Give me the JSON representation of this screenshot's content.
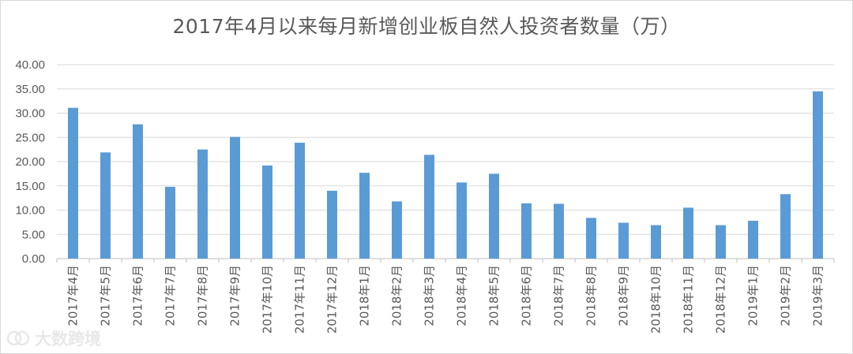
{
  "chart_data": {
    "type": "bar",
    "title": "2017年4月以来每月新增创业板自然人投资者数量（万）",
    "xlabel": "",
    "ylabel": "",
    "ylim": [
      0,
      40
    ],
    "yticks": [
      "0.00",
      "5.00",
      "10.00",
      "15.00",
      "20.00",
      "25.00",
      "30.00",
      "35.00",
      "40.00"
    ],
    "categories": [
      "2017年4月",
      "2017年5月",
      "2017年6月",
      "2017年7月",
      "2017年8月",
      "2017年9月",
      "2017年10月",
      "2017年11月",
      "2017年12月",
      "2018年1月",
      "2018年2月",
      "2018年3月",
      "2018年4月",
      "2018年5月",
      "2018年6月",
      "2018年7月",
      "2018年8月",
      "2018年9月",
      "2018年10月",
      "2018年11月",
      "2018年12月",
      "2019年1月",
      "2019年2月",
      "2019年3月"
    ],
    "values": [
      31.1,
      21.9,
      27.7,
      14.8,
      22.5,
      25.1,
      19.2,
      23.9,
      14.0,
      17.7,
      11.8,
      21.4,
      15.7,
      17.5,
      11.4,
      11.3,
      8.4,
      7.4,
      6.9,
      10.5,
      6.9,
      7.8,
      13.3,
      34.5
    ],
    "bar_color": "#5b9bd5",
    "grid": true,
    "legend": "none"
  },
  "watermark": {
    "text": "大数跨境"
  }
}
